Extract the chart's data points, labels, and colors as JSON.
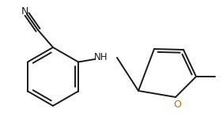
{
  "background_color": "#ffffff",
  "line_color": "#1a1a1a",
  "oxygen_color": "#c07000",
  "nitrogen_color": "#1a1a1a",
  "figsize": [
    2.82,
    1.71
  ],
  "dpi": 100,
  "lw": 1.4,
  "xlim": [
    0,
    282
  ],
  "ylim": [
    0,
    171
  ]
}
